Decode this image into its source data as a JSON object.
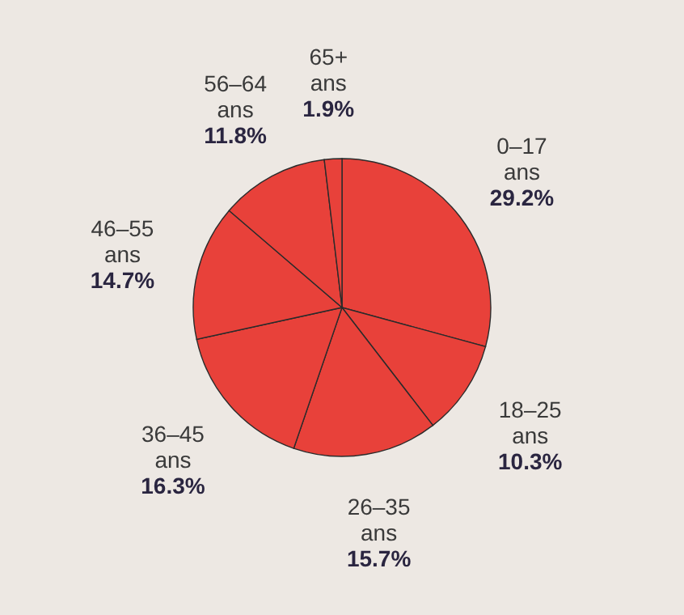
{
  "chart_data": {
    "type": "pie",
    "categories": [
      "0–17 ans",
      "18–25 ans",
      "26–35 ans",
      "36–45 ans",
      "46–55 ans",
      "56–64 ans",
      "65+ ans"
    ],
    "values": [
      29.2,
      10.3,
      15.7,
      16.3,
      14.7,
      11.8,
      1.9
    ],
    "value_labels": [
      "29.2%",
      "10.3%",
      "15.7%",
      "16.3%",
      "14.7%",
      "11.8%",
      "1.9%"
    ],
    "colors": [
      "#e8413a",
      "#e8413a",
      "#e8413a",
      "#e8413a",
      "#e8413a",
      "#e8413a",
      "#e8413a"
    ]
  }
}
